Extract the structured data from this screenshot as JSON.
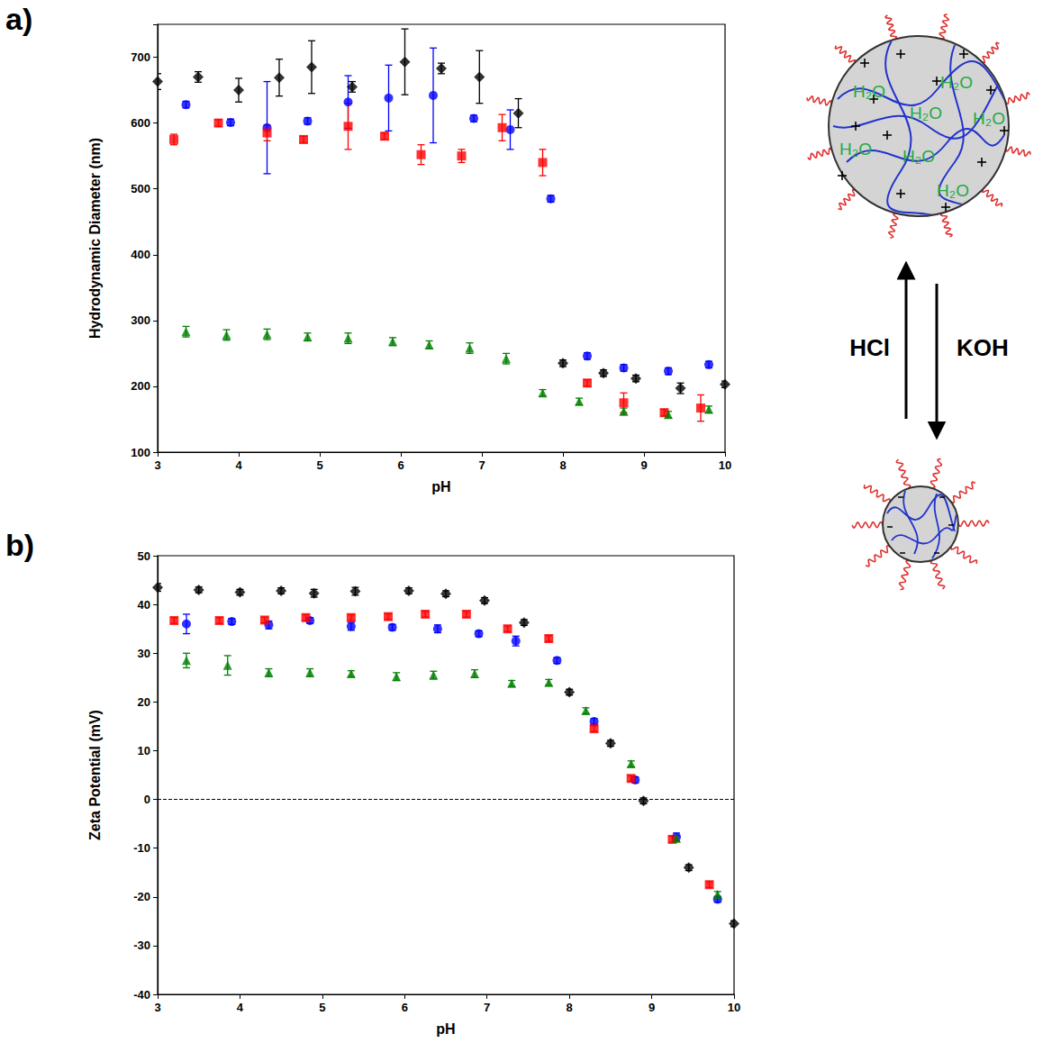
{
  "chart_data": [
    {
      "panel": "a)",
      "type": "scatter",
      "x_label": "pH",
      "y_label": "Hydrodynamic Diameter (nm)",
      "xlim": [
        3,
        10
      ],
      "xticks": [
        3,
        4,
        5,
        6,
        7,
        8,
        9,
        10
      ],
      "ylim": [
        100,
        750
      ],
      "yticks": [
        100,
        200,
        300,
        400,
        500,
        600,
        700
      ],
      "grid": false,
      "series": [
        {
          "color": "#000000",
          "marker": "diamond",
          "x": [
            3.0,
            3.5,
            4.0,
            4.5,
            4.9,
            5.4,
            6.05,
            6.5,
            6.97,
            7.45,
            8.0,
            8.5,
            8.9,
            9.45,
            10.0
          ],
          "values": [
            663,
            670,
            650,
            669,
            685,
            655,
            693,
            683,
            670,
            615,
            235,
            220,
            212,
            197,
            203
          ],
          "error": [
            12,
            8,
            18,
            28,
            40,
            8,
            50,
            8,
            40,
            22,
            5,
            5,
            5,
            8,
            5
          ]
        },
        {
          "color": "#0000ff",
          "marker": "circle",
          "x": [
            3.35,
            3.9,
            4.35,
            4.85,
            5.35,
            5.85,
            6.4,
            6.9,
            7.35,
            7.85,
            8.3,
            8.75,
            9.3,
            9.8
          ],
          "values": [
            628,
            601,
            593,
            603,
            632,
            638,
            642,
            607,
            590,
            485,
            246,
            228,
            223,
            233
          ],
          "error": [
            5,
            5,
            70,
            5,
            40,
            50,
            72,
            5,
            30,
            5,
            5,
            5,
            5,
            5
          ]
        },
        {
          "color": "#ff0000",
          "marker": "square",
          "x": [
            3.2,
            3.75,
            4.35,
            4.8,
            5.35,
            5.8,
            6.25,
            6.75,
            7.25,
            7.75,
            8.3,
            8.75,
            9.25,
            9.7
          ],
          "values": [
            575,
            600,
            585,
            575,
            595,
            580,
            552,
            550,
            593,
            540,
            205,
            175,
            160,
            167
          ],
          "error": [
            8,
            5,
            12,
            5,
            35,
            5,
            15,
            10,
            20,
            20,
            5,
            15,
            5,
            20
          ]
        },
        {
          "color": "#008000",
          "marker": "triangle",
          "x": [
            3.35,
            3.85,
            4.35,
            4.85,
            5.35,
            5.9,
            6.35,
            6.85,
            7.3,
            7.75,
            8.2,
            8.75,
            9.3,
            9.8
          ],
          "values": [
            283,
            278,
            279,
            275,
            273,
            268,
            263,
            258,
            242,
            190,
            177,
            162,
            157,
            165
          ],
          "error": [
            8,
            8,
            8,
            6,
            8,
            6,
            6,
            8,
            8,
            5,
            5,
            5,
            5,
            5
          ]
        }
      ]
    },
    {
      "panel": "b)",
      "type": "scatter",
      "x_label": "pH",
      "y_label": "Zeta Potential (mV)",
      "xlim": [
        3,
        10
      ],
      "xticks": [
        3,
        4,
        5,
        6,
        7,
        8,
        9,
        10
      ],
      "ylim": [
        -40,
        50
      ],
      "yticks": [
        -40,
        -30,
        -20,
        -10,
        0,
        10,
        20,
        30,
        40,
        50
      ],
      "grid": false,
      "reference_line": {
        "y": 0,
        "line_style": "dashed"
      },
      "series": [
        {
          "color": "#000000",
          "marker": "diamond",
          "x": [
            3.0,
            3.5,
            4.0,
            4.5,
            4.9,
            5.4,
            6.05,
            6.5,
            6.97,
            7.45,
            8.0,
            8.5,
            8.9,
            9.45,
            10.0
          ],
          "values": [
            43.5,
            43,
            42.5,
            42.8,
            42.3,
            42.7,
            42.8,
            42.2,
            40.8,
            36.3,
            22,
            11.5,
            -0.3,
            -14,
            -25.5
          ],
          "error": [
            0.8,
            0.6,
            0.6,
            0.6,
            0.8,
            0.8,
            0.6,
            0.6,
            0.6,
            0.6,
            0.6,
            0.6,
            0.6,
            0.6,
            0.6
          ]
        },
        {
          "color": "#0000ff",
          "marker": "circle",
          "x": [
            3.35,
            3.9,
            4.35,
            4.85,
            5.35,
            5.85,
            6.4,
            6.9,
            7.35,
            7.85,
            8.3,
            8.8,
            9.3,
            9.8
          ],
          "values": [
            36,
            36.5,
            35.8,
            36.7,
            35.5,
            35.3,
            35,
            34,
            32.5,
            28.5,
            16,
            4,
            -7.7,
            -20.5
          ],
          "error": [
            2,
            0.6,
            0.8,
            0.6,
            0.8,
            0.6,
            0.8,
            0.6,
            1,
            0.6,
            0.6,
            0.6,
            0.8,
            0.6
          ]
        },
        {
          "color": "#ff0000",
          "marker": "square",
          "x": [
            3.2,
            3.75,
            4.3,
            4.8,
            5.35,
            5.8,
            6.25,
            6.75,
            7.25,
            7.75,
            8.3,
            8.75,
            9.25,
            9.7
          ],
          "values": [
            36.7,
            36.7,
            36.8,
            37.3,
            37.3,
            37.5,
            38,
            38,
            35,
            33,
            14.5,
            4.3,
            -8.2,
            -17.5
          ],
          "error": [
            0.6,
            0.6,
            0.6,
            0.6,
            0.6,
            0.6,
            0.6,
            0.6,
            0.6,
            0.6,
            0.6,
            0.6,
            0.6,
            0.6
          ]
        },
        {
          "color": "#008000",
          "marker": "triangle",
          "x": [
            3.35,
            3.85,
            4.35,
            4.85,
            5.35,
            5.9,
            6.35,
            6.85,
            7.3,
            7.75,
            8.2,
            8.75,
            9.3,
            9.8
          ],
          "values": [
            28.5,
            27.5,
            26,
            26,
            25.8,
            25.2,
            25.5,
            25.8,
            23.8,
            24,
            18.2,
            7.3,
            -8,
            -19.5
          ],
          "error": [
            1.5,
            2,
            0.8,
            0.8,
            0.6,
            0.8,
            0.8,
            0.8,
            0.6,
            0.6,
            0.6,
            0.6,
            0.6,
            0.6
          ]
        }
      ]
    }
  ],
  "diagram": {
    "water_label": "H₂O",
    "acid": "HCl",
    "base": "KOH"
  }
}
